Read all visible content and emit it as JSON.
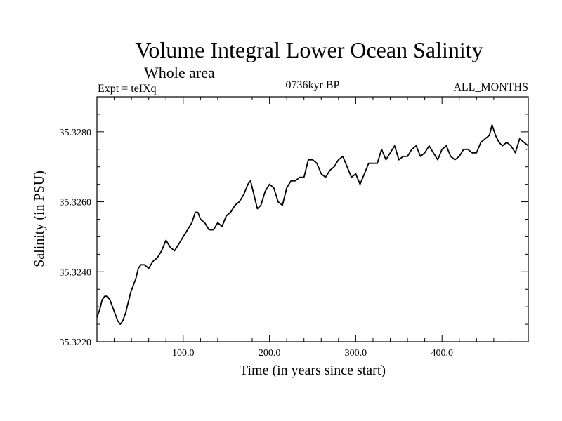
{
  "chart_data": {
    "type": "line",
    "title": "Volume Integral Lower Ocean Salinity",
    "subtitle": "Whole area",
    "left_label": "Expt = teIXq",
    "center_label": "0736kyr BP",
    "right_label": "ALL_MONTHS",
    "xlabel": "Time (in years since start)",
    "ylabel": "Salinity (in PSU)",
    "xlim": [
      0,
      500
    ],
    "ylim": [
      35.322,
      35.329
    ],
    "x_ticks": [
      {
        "value": 100,
        "label": "100.0"
      },
      {
        "value": 200,
        "label": "200.0"
      },
      {
        "value": 300,
        "label": "300.0"
      },
      {
        "value": 400,
        "label": "400.0"
      }
    ],
    "y_ticks": [
      {
        "value": 35.322,
        "label": "35.3220"
      },
      {
        "value": 35.324,
        "label": "35.3240"
      },
      {
        "value": 35.326,
        "label": "35.3260"
      },
      {
        "value": 35.328,
        "label": "35.3280"
      }
    ],
    "grid": false,
    "series": [
      {
        "color": "#000000",
        "x": [
          0,
          3,
          6,
          9,
          12,
          15,
          18,
          21,
          24,
          27,
          30,
          33,
          36,
          39,
          42,
          45,
          48,
          51,
          55,
          60,
          65,
          70,
          75,
          80,
          85,
          90,
          95,
          100,
          105,
          110,
          114,
          117,
          120,
          125,
          130,
          135,
          140,
          145,
          150,
          155,
          160,
          165,
          170,
          175,
          178,
          182,
          186,
          190,
          195,
          200,
          205,
          210,
          215,
          220,
          225,
          230,
          235,
          240,
          245,
          250,
          255,
          260,
          265,
          270,
          275,
          280,
          285,
          290,
          295,
          300,
          305,
          310,
          315,
          320,
          325,
          330,
          335,
          340,
          345,
          350,
          355,
          360,
          365,
          370,
          375,
          380,
          385,
          390,
          395,
          400,
          405,
          410,
          415,
          420,
          425,
          430,
          435,
          440,
          445,
          450,
          455,
          458,
          462,
          466,
          470,
          475,
          480,
          485,
          490,
          495,
          500
        ],
        "values": [
          35.3227,
          35.3229,
          35.3232,
          35.3233,
          35.3233,
          35.3232,
          35.323,
          35.3228,
          35.3226,
          35.3225,
          35.3226,
          35.3228,
          35.3231,
          35.3234,
          35.3236,
          35.3238,
          35.3241,
          35.3242,
          35.3242,
          35.3241,
          35.3243,
          35.3244,
          35.3246,
          35.3249,
          35.3247,
          35.3246,
          35.3248,
          35.325,
          35.3252,
          35.3254,
          35.3257,
          35.3257,
          35.3255,
          35.3254,
          35.3252,
          35.3252,
          35.3254,
          35.3253,
          35.3256,
          35.3257,
          35.3259,
          35.326,
          35.3262,
          35.3265,
          35.3266,
          35.3262,
          35.3258,
          35.3259,
          35.3263,
          35.3265,
          35.3264,
          35.326,
          35.3259,
          35.3264,
          35.3266,
          35.3266,
          35.3267,
          35.3267,
          35.3272,
          35.3272,
          35.3271,
          35.3268,
          35.3267,
          35.3269,
          35.327,
          35.3272,
          35.3273,
          35.327,
          35.3267,
          35.3268,
          35.3265,
          35.3268,
          35.3271,
          35.3271,
          35.3271,
          35.3275,
          35.3272,
          35.3274,
          35.3276,
          35.3272,
          35.3273,
          35.3273,
          35.3275,
          35.3276,
          35.3273,
          35.3274,
          35.3276,
          35.3274,
          35.3272,
          35.3275,
          35.3276,
          35.3273,
          35.3272,
          35.3273,
          35.3275,
          35.3275,
          35.3274,
          35.3274,
          35.3277,
          35.3278,
          35.3279,
          35.3282,
          35.3279,
          35.3277,
          35.3276,
          35.3277,
          35.3276,
          35.3274,
          35.3278,
          35.3277,
          35.3276
        ]
      }
    ]
  }
}
